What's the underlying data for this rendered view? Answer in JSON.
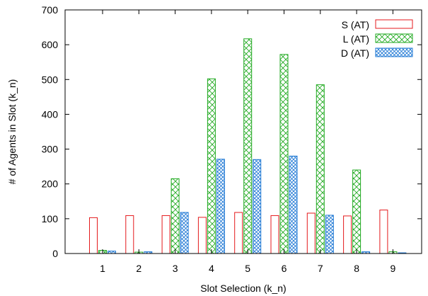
{
  "chart_data": {
    "type": "bar",
    "title": "",
    "xlabel": "Slot Selection (k_n)",
    "ylabel": "# of Agents in Slot (k_n)",
    "categories": [
      "1",
      "2",
      "3",
      "4",
      "5",
      "6",
      "7",
      "8",
      "9"
    ],
    "ylim": [
      0,
      700
    ],
    "yticks": [
      "0",
      "100",
      "200",
      "300",
      "400",
      "500",
      "600",
      "700"
    ],
    "grid": false,
    "legend_position": "top-right",
    "series": [
      {
        "name": "S (AT)",
        "color": "#e41a1c",
        "pattern": "none",
        "values": [
          103,
          109,
          109,
          104,
          118,
          109,
          116,
          108,
          125
        ]
      },
      {
        "name": "L (AT)",
        "color": "#22aa22",
        "pattern": "cross-hatch",
        "values": [
          9,
          4,
          215,
          502,
          617,
          572,
          485,
          240,
          5
        ]
      },
      {
        "name": "D (AT)",
        "color": "#1f78d4",
        "pattern": "dense-cross-hatch",
        "values": [
          7,
          5,
          118,
          271,
          270,
          280,
          110,
          5,
          2
        ]
      }
    ]
  }
}
